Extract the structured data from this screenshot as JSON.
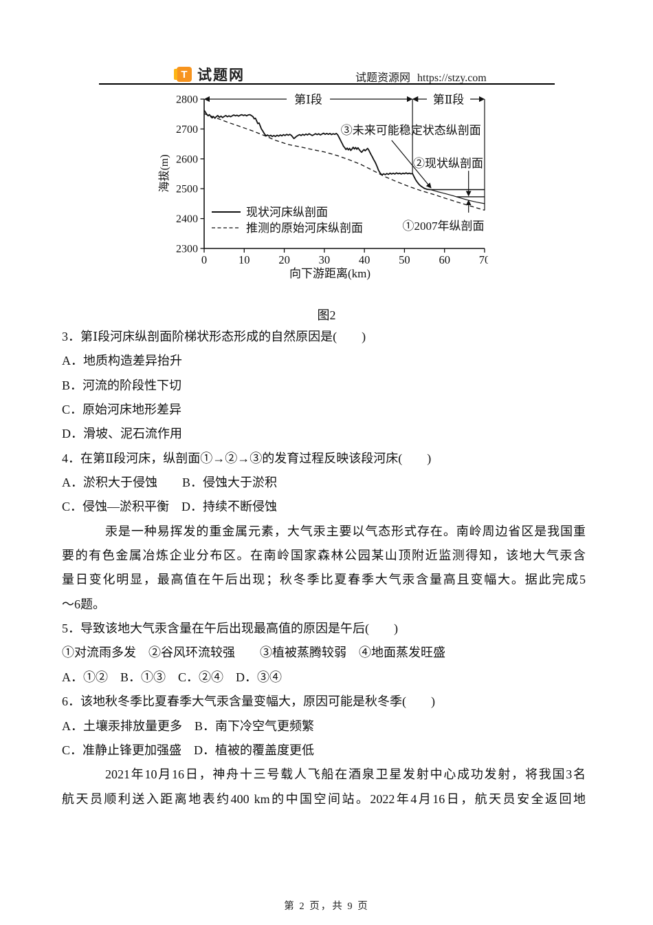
{
  "header": {
    "logo_letter": "T",
    "logo_text": "试题网",
    "site_label": "试题资源网",
    "site_url": "https://stzy.com",
    "brand_color": "#F7941E",
    "brand_edge_color": "#FDB515"
  },
  "chart_data": {
    "type": "line",
    "title": "",
    "xlabel": "向下游距离(km)",
    "ylabel": "海拔(m)",
    "xlim": [
      0,
      70
    ],
    "ylim": [
      2300,
      2800
    ],
    "x_ticks": [
      0,
      10,
      20,
      30,
      40,
      50,
      60,
      70
    ],
    "y_ticks": [
      2800,
      2700,
      2600,
      2500,
      2400,
      2300
    ],
    "grid": false,
    "legend_position": "inside-lower-left",
    "sections": [
      {
        "label": "第Ⅰ段",
        "from_km": 0,
        "to_km": 52
      },
      {
        "label": "第Ⅱ段",
        "from_km": 52,
        "to_km": 70
      }
    ],
    "section_divider_bottom_m": 2551,
    "right_border_bottom_m": 2428,
    "legend": [
      {
        "name": "现状河床纵剖面",
        "style": "solid"
      },
      {
        "name": "推测的原始河床纵剖面",
        "style": "dashed"
      }
    ],
    "series": [
      {
        "id": "current-bed",
        "name": "现状河床纵剖面",
        "style": "solid",
        "width": 1.8,
        "points": [
          [
            0,
            2763
          ],
          [
            0.3,
            2757
          ],
          [
            0.6,
            2750
          ],
          [
            1,
            2744
          ],
          [
            1.3,
            2748
          ],
          [
            1.7,
            2741
          ],
          [
            2,
            2737
          ],
          [
            2.3,
            2742
          ],
          [
            2.7,
            2736
          ],
          [
            3,
            2741
          ],
          [
            3.4,
            2745
          ],
          [
            3.8,
            2739
          ],
          [
            4.2,
            2743
          ],
          [
            4.6,
            2738
          ],
          [
            5,
            2742
          ],
          [
            5.4,
            2745
          ],
          [
            5.8,
            2741
          ],
          [
            6.2,
            2744
          ],
          [
            6.6,
            2741
          ],
          [
            7,
            2744
          ],
          [
            7.4,
            2747
          ],
          [
            7.8,
            2744
          ],
          [
            8.2,
            2746
          ],
          [
            8.6,
            2743
          ],
          [
            9,
            2746
          ],
          [
            9.4,
            2748
          ],
          [
            9.8,
            2745
          ],
          [
            10.2,
            2747
          ],
          [
            10.6,
            2744
          ],
          [
            11,
            2747
          ],
          [
            11.4,
            2748
          ],
          [
            11.8,
            2745
          ],
          [
            12.2,
            2741
          ],
          [
            12.5,
            2734
          ],
          [
            12.8,
            2736
          ],
          [
            13.1,
            2727
          ],
          [
            13.4,
            2718
          ],
          [
            13.7,
            2720
          ],
          [
            14,
            2710
          ],
          [
            14.3,
            2700
          ],
          [
            14.6,
            2694
          ],
          [
            14.9,
            2687
          ],
          [
            15.2,
            2681
          ],
          [
            15.5,
            2677
          ],
          [
            15.8,
            2680
          ],
          [
            16.2,
            2676
          ],
          [
            16.6,
            2679
          ],
          [
            17,
            2675
          ],
          [
            17.4,
            2678
          ],
          [
            17.8,
            2675
          ],
          [
            18.2,
            2679
          ],
          [
            18.6,
            2676
          ],
          [
            19,
            2680
          ],
          [
            19.4,
            2677
          ],
          [
            19.8,
            2681
          ],
          [
            20.2,
            2678
          ],
          [
            20.6,
            2682
          ],
          [
            21,
            2679
          ],
          [
            21.4,
            2682
          ],
          [
            21.8,
            2678
          ],
          [
            22.1,
            2673
          ],
          [
            22.4,
            2668
          ],
          [
            22.7,
            2671
          ],
          [
            23,
            2675
          ],
          [
            23.4,
            2678
          ],
          [
            23.8,
            2681
          ],
          [
            24.2,
            2678
          ],
          [
            24.6,
            2682
          ],
          [
            25,
            2679
          ],
          [
            25.4,
            2683
          ],
          [
            25.8,
            2680
          ],
          [
            26.2,
            2684
          ],
          [
            26.6,
            2681
          ],
          [
            27,
            2678
          ],
          [
            27.4,
            2681
          ],
          [
            27.8,
            2684
          ],
          [
            28.2,
            2681
          ],
          [
            28.6,
            2684
          ],
          [
            29,
            2680
          ],
          [
            29.4,
            2683
          ],
          [
            29.8,
            2686
          ],
          [
            30.2,
            2682
          ],
          [
            30.6,
            2685
          ],
          [
            31,
            2682
          ],
          [
            31.4,
            2685
          ],
          [
            31.8,
            2681
          ],
          [
            32.2,
            2684
          ],
          [
            32.6,
            2682
          ],
          [
            33,
            2685
          ],
          [
            33.3,
            2681
          ],
          [
            33.6,
            2674
          ],
          [
            33.9,
            2666
          ],
          [
            34.2,
            2658
          ],
          [
            34.5,
            2650
          ],
          [
            34.8,
            2642
          ],
          [
            35.1,
            2637
          ],
          [
            35.4,
            2631
          ],
          [
            35.7,
            2636
          ],
          [
            36,
            2630
          ],
          [
            36.3,
            2635
          ],
          [
            36.6,
            2628
          ],
          [
            36.9,
            2633
          ],
          [
            37.2,
            2639
          ],
          [
            37.5,
            2633
          ],
          [
            37.8,
            2638
          ],
          [
            38.1,
            2632
          ],
          [
            38.4,
            2637
          ],
          [
            38.7,
            2631
          ],
          [
            39,
            2626
          ],
          [
            39.3,
            2622
          ],
          [
            39.6,
            2627
          ],
          [
            39.9,
            2631
          ],
          [
            40.2,
            2627
          ],
          [
            40.5,
            2631
          ],
          [
            40.8,
            2635
          ],
          [
            41.1,
            2629
          ],
          [
            41.4,
            2621
          ],
          [
            41.7,
            2613
          ],
          [
            42,
            2606
          ],
          [
            42.3,
            2598
          ],
          [
            42.6,
            2591
          ],
          [
            42.9,
            2583
          ],
          [
            43.2,
            2573
          ],
          [
            43.5,
            2563
          ],
          [
            43.8,
            2555
          ],
          [
            44.1,
            2550
          ],
          [
            44.4,
            2546
          ],
          [
            44.8,
            2550
          ],
          [
            45.2,
            2547
          ],
          [
            45.6,
            2551
          ],
          [
            46,
            2548
          ],
          [
            46.4,
            2552
          ],
          [
            46.8,
            2549
          ],
          [
            47.2,
            2552
          ],
          [
            47.6,
            2549
          ],
          [
            48,
            2553
          ],
          [
            48.4,
            2550
          ],
          [
            48.8,
            2552
          ],
          [
            49.2,
            2549
          ],
          [
            49.6,
            2552
          ],
          [
            50,
            2550
          ],
          [
            50.4,
            2553
          ],
          [
            50.8,
            2550
          ],
          [
            51.2,
            2552
          ],
          [
            51.6,
            2550
          ],
          [
            52,
            2551
          ],
          [
            52.4,
            2540
          ],
          [
            52.8,
            2530
          ],
          [
            53.2,
            2522
          ],
          [
            53.6,
            2515
          ],
          [
            54,
            2510
          ],
          [
            54.5,
            2505
          ],
          [
            55,
            2501
          ],
          [
            55.7,
            2498
          ],
          [
            56.5,
            2497
          ]
        ]
      },
      {
        "id": "profile-2007",
        "name": "①2007年纵剖面",
        "style": "solid",
        "width": 1.2,
        "points": [
          [
            56.5,
            2497
          ],
          [
            58,
            2491
          ],
          [
            60,
            2484
          ],
          [
            62,
            2477
          ],
          [
            64,
            2469
          ],
          [
            66,
            2461
          ],
          [
            68,
            2455
          ],
          [
            70,
            2450
          ]
        ]
      },
      {
        "id": "profile-future",
        "name": "③未来可能稳定状态纵剖面",
        "style": "solid",
        "width": 1.4,
        "points": [
          [
            56.5,
            2497
          ],
          [
            70,
            2497
          ]
        ]
      },
      {
        "id": "profile-present-II",
        "name": "②现状纵剖面",
        "style": "solid",
        "width": 1.4,
        "points": [
          [
            63,
            2473
          ],
          [
            70,
            2473
          ]
        ]
      },
      {
        "id": "original-bed",
        "name": "推测的原始河床纵剖面",
        "style": "dashed",
        "width": 1.3,
        "points": [
          [
            0,
            2751
          ],
          [
            3,
            2737
          ],
          [
            6,
            2722
          ],
          [
            9,
            2708
          ],
          [
            12,
            2694
          ],
          [
            15,
            2678
          ],
          [
            18,
            2661
          ],
          [
            21,
            2648
          ],
          [
            24,
            2640
          ],
          [
            27,
            2631
          ],
          [
            30,
            2623
          ],
          [
            33,
            2612
          ],
          [
            36,
            2598
          ],
          [
            39,
            2582
          ],
          [
            42,
            2562
          ],
          [
            45,
            2541
          ],
          [
            48,
            2524
          ],
          [
            51,
            2508
          ],
          [
            54,
            2494
          ],
          [
            57,
            2482
          ],
          [
            60,
            2469
          ],
          [
            63,
            2456
          ],
          [
            66,
            2444
          ],
          [
            68,
            2436
          ],
          [
            70,
            2428
          ]
        ]
      }
    ],
    "annotations": [
      {
        "label": "③未来可能稳定状态纵剖面",
        "text_km": 51.6,
        "text_m": 2696,
        "arrow": {
          "from": [
            46.8,
            2662
          ],
          "to": [
            56.6,
            2503
          ]
        }
      },
      {
        "label": "②现状纵剖面",
        "text_km": 60.9,
        "text_m": 2586,
        "arrow": {
          "from": [
            66,
            2560
          ],
          "to": [
            66,
            2477
          ]
        }
      },
      {
        "label": "①2007年纵剖面",
        "text_km": 59.7,
        "text_m": 2376,
        "arrow": {
          "from": [
            66,
            2420
          ],
          "to": [
            66,
            2460
          ]
        }
      }
    ]
  },
  "content": {
    "figure_caption": "图2",
    "lines": [
      {
        "kind": "question",
        "text": "3．第Ⅰ段河床纵剖面阶梯状形态形成的自然原因是(　　)"
      },
      {
        "kind": "option",
        "text": "A．地质构造差异抬升"
      },
      {
        "kind": "option",
        "text": "B．河流的阶段性下切"
      },
      {
        "kind": "option",
        "text": "C．原始河床地形差异"
      },
      {
        "kind": "option",
        "text": "D．滑坡、泥石流作用"
      },
      {
        "kind": "question",
        "text": "4．在第Ⅱ段河床，纵剖面①→②→③的发育过程反映该段河床(　　)"
      },
      {
        "kind": "option",
        "text": "A．淤积大于侵蚀　　B．侵蚀大于淤积"
      },
      {
        "kind": "option",
        "text": "C．侵蚀—淤积平衡　D．持续不断侵蚀"
      },
      {
        "kind": "para",
        "indent": true,
        "justify": true,
        "text": "汞是一种易挥发的重金属元素，大气汞主要以气态形式存在。南岭周边省区是我国重"
      },
      {
        "kind": "para",
        "indent": false,
        "justify": true,
        "text": "要的有色金属冶炼企业分布区。在南岭国家森林公园某山顶附近监测得知，该地大气汞含"
      },
      {
        "kind": "para",
        "indent": false,
        "justify": true,
        "text": "量日变化明显，最高值在午后出现；秋冬季比夏春季大气汞含量高且变幅大。据此完成5"
      },
      {
        "kind": "para",
        "indent": false,
        "justify": false,
        "text": "～6题。"
      },
      {
        "kind": "question",
        "text": "5．导致该地大气汞含量在午后出现最高值的原因是午后(　　)"
      },
      {
        "kind": "option",
        "text": "①对流雨多发　②谷风环流较强　　③植被蒸腾较弱　④地面蒸发旺盛"
      },
      {
        "kind": "option",
        "text": "A．①②　B．①③　C．②④　D．③④"
      },
      {
        "kind": "question",
        "text": "6．该地秋冬季比夏春季大气汞含量变幅大，原因可能是秋冬季(　　)"
      },
      {
        "kind": "option",
        "text": "A．土壤汞排放量更多　B．南下冷空气更频繁"
      },
      {
        "kind": "option",
        "text": "C．准静止锋更加强盛　D．植被的覆盖度更低"
      },
      {
        "kind": "para",
        "indent": true,
        "justify": true,
        "text": "2021年10月16日，神舟十三号载人飞船在酒泉卫星发射中心成功发射，将我国3名"
      },
      {
        "kind": "para",
        "indent": false,
        "justify": true,
        "text": "航天员顺利送入距离地表约400 km的中国空间站。2022年4月16日，航天员安全返回地"
      }
    ]
  },
  "footer": {
    "page_text": "第 2 页，共 9 页"
  }
}
